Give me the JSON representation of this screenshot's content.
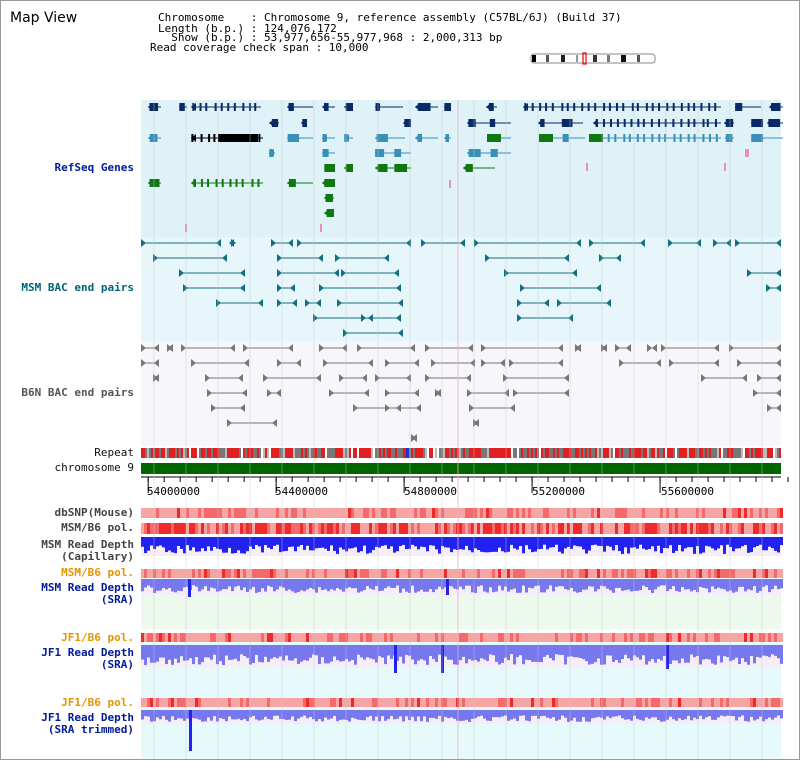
{
  "page": {
    "title": "Map View"
  },
  "info": {
    "chromosome_line": "Chromosome    : Chromosome 9, reference assembly (C57BL/6J) (Build 37)",
    "length_line": "Length (b.p.) : 124,076,172",
    "show_line": "  Show (b.p.) : 53,977,656-55,977,968 : 2,000,313 bp",
    "coverage_line": "Read coverage check span : 10,000"
  },
  "tracks": {
    "refseq": "RefSeq Genes",
    "msm_bac": "MSM BAC end pairs",
    "b6n_bac": "B6N BAC end pairs",
    "repeat": "Repeat",
    "chromosome": "chromosome 9",
    "dbsnp": "dbSNP(Mouse)",
    "msm_b6_pol": "MSM/B6 pol.",
    "msm_depth_cap": "MSM Read Depth\n(Capillary)",
    "msm_b6_pol2": "MSM/B6 pol.",
    "msm_depth_sra": "MSM Read Depth\n(SRA)",
    "jf1_b6_pol": "JF1/B6 pol.",
    "jf1_depth_sra": "JF1 Read Depth\n(SRA)",
    "jf1_b6_pol2": "JF1/B6 pol.",
    "jf1_depth_trim": "JF1 Read Depth\n(SRA trimmed)"
  },
  "ruler": {
    "ticks": [
      "54000000",
      "54400000",
      "54800000",
      "55200000",
      "55600000"
    ],
    "tick_values": [
      54000000,
      54400000,
      54800000,
      55200000,
      55600000
    ],
    "range_start": 53977656,
    "range_end": 55977968
  },
  "colors": {
    "refseq_dark": "#0a2a66",
    "refseq_mid": "#3a8fb7",
    "refseq_green": "#117711",
    "bac_teal": "#127080",
    "bac_gray": "#777777",
    "chromosome_bar": "#006600",
    "depth_blue": "#2222ee",
    "depth_light": "#7777ee",
    "pol_red": "#ee2222"
  }
}
